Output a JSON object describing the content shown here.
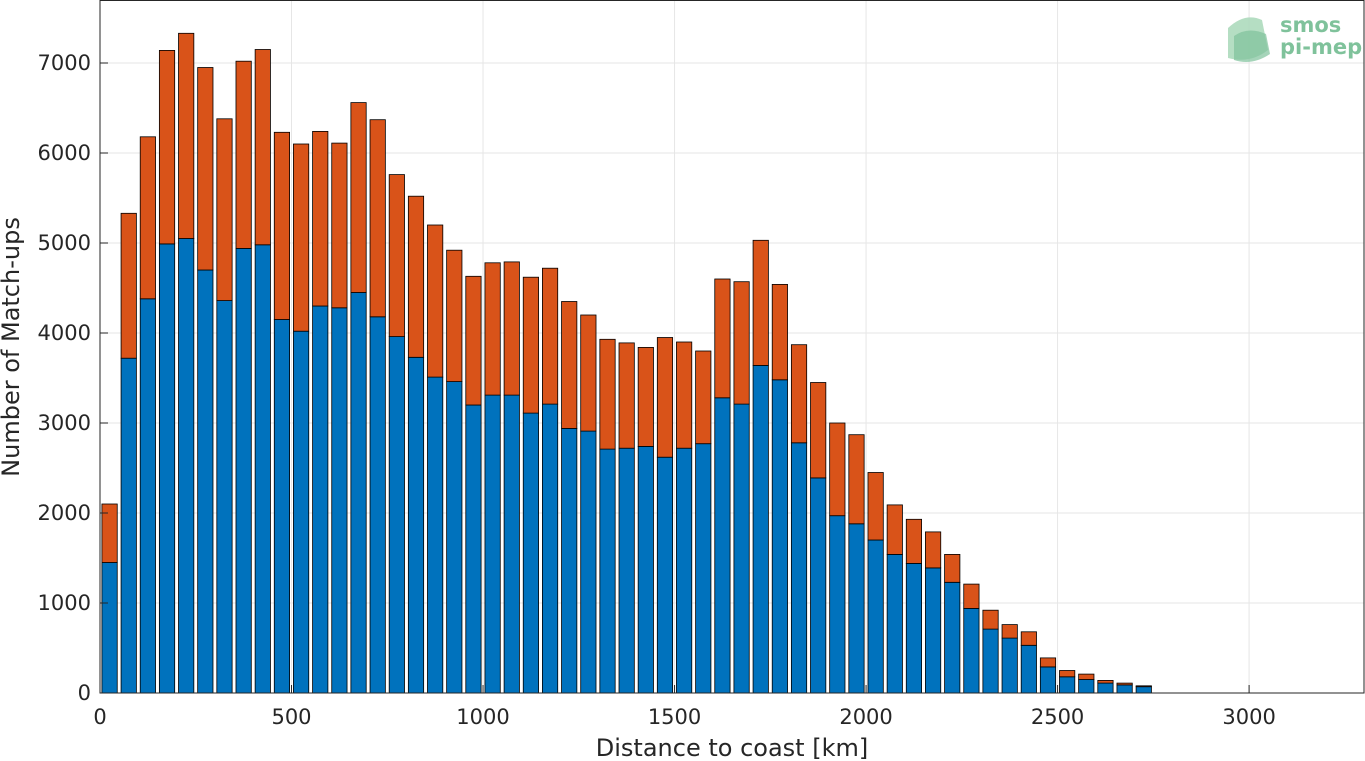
{
  "chart_data": {
    "type": "bar",
    "stacked": true,
    "xlabel": "Distance to coast [km]",
    "ylabel": "Number of Match-ups",
    "xlim": [
      0,
      3300
    ],
    "ylim": [
      0,
      7700
    ],
    "bin_width": 50,
    "x": [
      25,
      75,
      125,
      175,
      225,
      275,
      325,
      375,
      425,
      475,
      525,
      575,
      625,
      675,
      725,
      775,
      825,
      875,
      925,
      975,
      1025,
      1075,
      1125,
      1175,
      1225,
      1275,
      1325,
      1375,
      1425,
      1475,
      1525,
      1575,
      1625,
      1675,
      1725,
      1775,
      1825,
      1875,
      1925,
      1975,
      2025,
      2075,
      2125,
      2175,
      2225,
      2275,
      2325,
      2375,
      2425,
      2475,
      2525,
      2575,
      2625,
      2675,
      2725
    ],
    "xticks": [
      0,
      500,
      1000,
      1500,
      2000,
      2500,
      3000
    ],
    "xtick_labels": [
      "0",
      "500",
      "1000",
      "1500",
      "2000",
      "2500",
      "3000"
    ],
    "yticks": [
      0,
      1000,
      2000,
      3000,
      4000,
      5000,
      6000,
      7000
    ],
    "ytick_labels": [
      "0",
      "1000",
      "2000",
      "3000",
      "4000",
      "5000",
      "6000",
      "7000"
    ],
    "grid": true,
    "series": [
      {
        "color": "#0072BD",
        "values": [
          1450,
          3720,
          4380,
          4990,
          5050,
          4700,
          4360,
          4940,
          4980,
          4150,
          4020,
          4300,
          4280,
          4450,
          4180,
          3960,
          3730,
          3510,
          3460,
          3200,
          3310,
          3310,
          3110,
          3210,
          2940,
          2910,
          2710,
          2720,
          2740,
          2620,
          2720,
          2770,
          3280,
          3210,
          3640,
          3480,
          2780,
          2390,
          1970,
          1880,
          1700,
          1540,
          1440,
          1390,
          1230,
          940,
          710,
          610,
          530,
          290,
          180,
          150,
          110,
          90,
          70
        ]
      },
      {
        "color": "#D95319",
        "values": [
          650,
          1610,
          1800,
          2150,
          2280,
          2250,
          2020,
          2080,
          2170,
          2080,
          2080,
          1940,
          1830,
          2110,
          2190,
          1800,
          1790,
          1690,
          1460,
          1430,
          1470,
          1480,
          1510,
          1510,
          1410,
          1290,
          1220,
          1170,
          1100,
          1330,
          1180,
          1030,
          1320,
          1360,
          1390,
          1060,
          1090,
          1060,
          1030,
          990,
          750,
          550,
          490,
          400,
          310,
          270,
          210,
          150,
          150,
          100,
          70,
          60,
          30,
          20,
          10
        ]
      }
    ]
  },
  "logo": {
    "line1": "smos",
    "line2": "pi-mep",
    "color": "#7fc29b"
  }
}
